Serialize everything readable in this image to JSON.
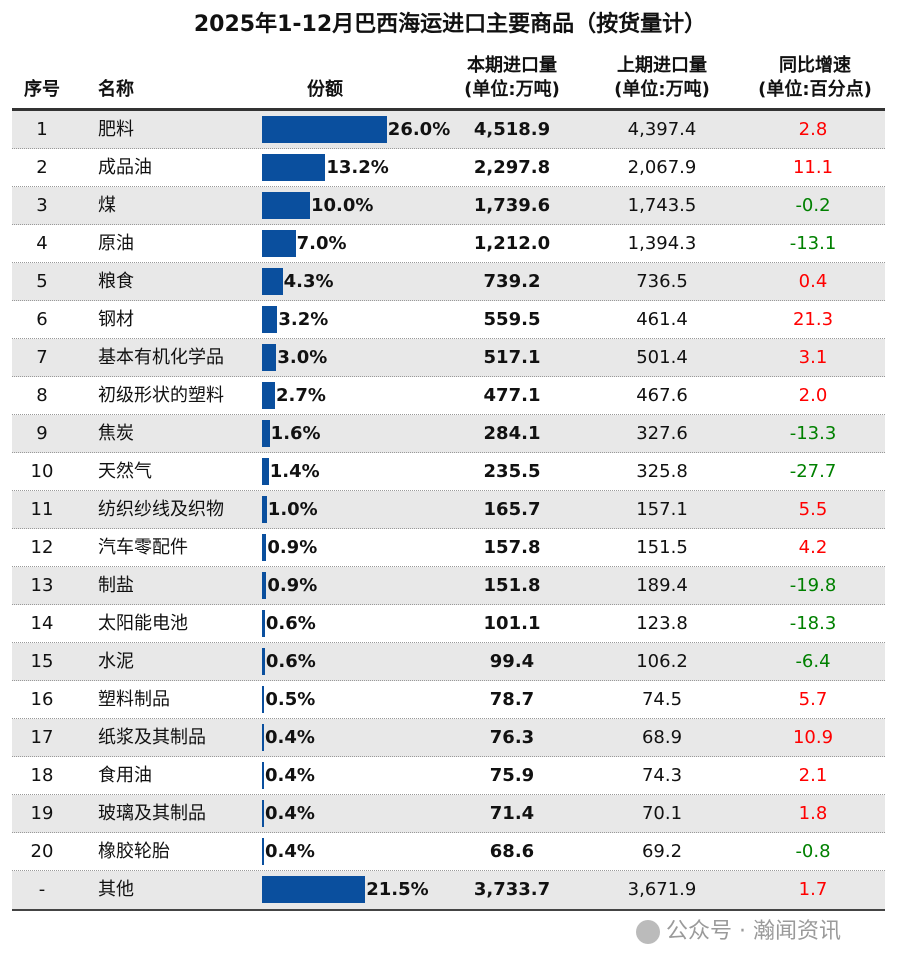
{
  "chart_data": {
    "type": "table",
    "title": "2025年1-12月巴西海运进口主要商品（按货量计）",
    "columns": [
      "序号",
      "名称",
      "份额",
      "本期进口量\n(单位:万吨)",
      "上期进口量\n(单位:万吨)",
      "同比增速\n(单位:百分点)"
    ],
    "column_headers": {
      "idx": "序号",
      "name": "名称",
      "share": "份额",
      "cur_1": "本期进口量",
      "cur_2": "(单位:万吨)",
      "prev_1": "上期进口量",
      "prev_2": "(单位:万吨)",
      "yoy_1": "同比增速",
      "yoy_2": "(单位:百分点)"
    },
    "rows": [
      {
        "idx": "1",
        "name": "肥料",
        "share": 26.0,
        "share_label": "26.0%",
        "cur": "4,518.9",
        "prev": "4,397.4",
        "yoy": "2.8"
      },
      {
        "idx": "2",
        "name": "成品油",
        "share": 13.2,
        "share_label": "13.2%",
        "cur": "2,297.8",
        "prev": "2,067.9",
        "yoy": "11.1"
      },
      {
        "idx": "3",
        "name": "煤",
        "share": 10.0,
        "share_label": "10.0%",
        "cur": "1,739.6",
        "prev": "1,743.5",
        "yoy": "-0.2"
      },
      {
        "idx": "4",
        "name": "原油",
        "share": 7.0,
        "share_label": "7.0%",
        "cur": "1,212.0",
        "prev": "1,394.3",
        "yoy": "-13.1"
      },
      {
        "idx": "5",
        "name": "粮食",
        "share": 4.3,
        "share_label": "4.3%",
        "cur": "739.2",
        "prev": "736.5",
        "yoy": "0.4"
      },
      {
        "idx": "6",
        "name": "钢材",
        "share": 3.2,
        "share_label": "3.2%",
        "cur": "559.5",
        "prev": "461.4",
        "yoy": "21.3"
      },
      {
        "idx": "7",
        "name": "基本有机化学品",
        "share": 3.0,
        "share_label": "3.0%",
        "cur": "517.1",
        "prev": "501.4",
        "yoy": "3.1"
      },
      {
        "idx": "8",
        "name": "初级形状的塑料",
        "share": 2.7,
        "share_label": "2.7%",
        "cur": "477.1",
        "prev": "467.6",
        "yoy": "2.0"
      },
      {
        "idx": "9",
        "name": "焦炭",
        "share": 1.6,
        "share_label": "1.6%",
        "cur": "284.1",
        "prev": "327.6",
        "yoy": "-13.3"
      },
      {
        "idx": "10",
        "name": "天然气",
        "share": 1.4,
        "share_label": "1.4%",
        "cur": "235.5",
        "prev": "325.8",
        "yoy": "-27.7"
      },
      {
        "idx": "11",
        "name": "纺织纱线及织物",
        "share": 1.0,
        "share_label": "1.0%",
        "cur": "165.7",
        "prev": "157.1",
        "yoy": "5.5"
      },
      {
        "idx": "12",
        "name": "汽车零配件",
        "share": 0.9,
        "share_label": "0.9%",
        "cur": "157.8",
        "prev": "151.5",
        "yoy": "4.2"
      },
      {
        "idx": "13",
        "name": "制盐",
        "share": 0.9,
        "share_label": "0.9%",
        "cur": "151.8",
        "prev": "189.4",
        "yoy": "-19.8"
      },
      {
        "idx": "14",
        "name": "太阳能电池",
        "share": 0.6,
        "share_label": "0.6%",
        "cur": "101.1",
        "prev": "123.8",
        "yoy": "-18.3"
      },
      {
        "idx": "15",
        "name": "水泥",
        "share": 0.6,
        "share_label": "0.6%",
        "cur": "99.4",
        "prev": "106.2",
        "yoy": "-6.4"
      },
      {
        "idx": "16",
        "name": "塑料制品",
        "share": 0.5,
        "share_label": "0.5%",
        "cur": "78.7",
        "prev": "74.5",
        "yoy": "5.7"
      },
      {
        "idx": "17",
        "name": "纸浆及其制品",
        "share": 0.4,
        "share_label": "0.4%",
        "cur": "76.3",
        "prev": "68.9",
        "yoy": "10.9"
      },
      {
        "idx": "18",
        "name": "食用油",
        "share": 0.4,
        "share_label": "0.4%",
        "cur": "75.9",
        "prev": "74.3",
        "yoy": "2.1"
      },
      {
        "idx": "19",
        "name": "玻璃及其制品",
        "share": 0.4,
        "share_label": "0.4%",
        "cur": "71.4",
        "prev": "70.1",
        "yoy": "1.8"
      },
      {
        "idx": "20",
        "name": "橡胶轮胎",
        "share": 0.4,
        "share_label": "0.4%",
        "cur": "68.6",
        "prev": "69.2",
        "yoy": "-0.8"
      },
      {
        "idx": "-",
        "name": "其他",
        "share": 21.5,
        "share_label": "21.5%",
        "cur": "3,733.7",
        "prev": "3,671.9",
        "yoy": "1.7"
      }
    ]
  },
  "colors": {
    "bar": "#0a4f9e",
    "positive": "#ff0000",
    "negative": "#008000",
    "stripe": "#e8e8e8"
  },
  "watermark": "公众号 · 瀚闻资讯"
}
